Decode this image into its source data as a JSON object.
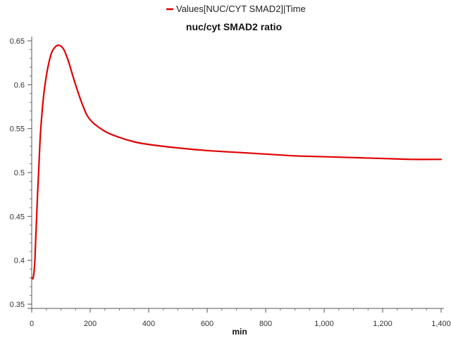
{
  "chart_data": {
    "type": "line",
    "title": "nuc/cyt SMAD2 ratio",
    "xlabel": "min",
    "ylabel": "",
    "xlim": [
      0,
      1400
    ],
    "ylim": [
      0.35,
      0.65
    ],
    "legend_position": "top",
    "grid": false,
    "xticks": [
      {
        "value": 0,
        "label": "0"
      },
      {
        "value": 200,
        "label": "200"
      },
      {
        "value": 400,
        "label": "400"
      },
      {
        "value": 600,
        "label": "600"
      },
      {
        "value": 800,
        "label": "800"
      },
      {
        "value": 1000,
        "label": "1,000"
      },
      {
        "value": 1200,
        "label": "1,200"
      },
      {
        "value": 1400,
        "label": "1,400"
      }
    ],
    "yticks": [
      {
        "value": 0.35,
        "label": "0.35"
      },
      {
        "value": 0.4,
        "label": "0.4"
      },
      {
        "value": 0.45,
        "label": "0.45"
      },
      {
        "value": 0.5,
        "label": "0.5"
      },
      {
        "value": 0.55,
        "label": "0.55"
      },
      {
        "value": 0.6,
        "label": "0.6"
      },
      {
        "value": 0.65,
        "label": "0.65"
      }
    ],
    "series": [
      {
        "name": "Values[NUC/CYT SMAD2]|Time",
        "color": "#e00000",
        "x": [
          0,
          5,
          10,
          15,
          20,
          25,
          30,
          40,
          50,
          60,
          70,
          80,
          90,
          100,
          110,
          120,
          130,
          150,
          175,
          200,
          250,
          300,
          350,
          400,
          500,
          600,
          700,
          800,
          900,
          1000,
          1100,
          1200,
          1300,
          1400
        ],
        "y": [
          0.38,
          0.38,
          0.395,
          0.435,
          0.475,
          0.51,
          0.545,
          0.585,
          0.61,
          0.627,
          0.638,
          0.643,
          0.645,
          0.644,
          0.64,
          0.632,
          0.622,
          0.6,
          0.576,
          0.56,
          0.547,
          0.54,
          0.535,
          0.532,
          0.528,
          0.525,
          0.523,
          0.521,
          0.519,
          0.518,
          0.517,
          0.516,
          0.515,
          0.515
        ]
      }
    ]
  }
}
